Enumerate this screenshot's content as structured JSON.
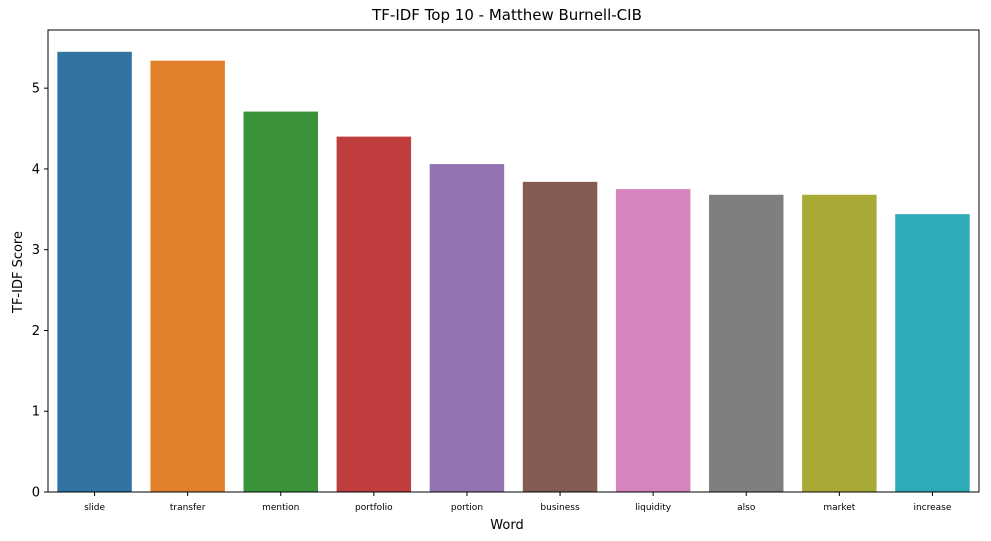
{
  "chart_data": {
    "type": "bar",
    "title": "TF-IDF Top 10 - Matthew Burnell-CIB",
    "xlabel": "Word",
    "ylabel": "TF-IDF Score",
    "categories": [
      "slide",
      "transfer",
      "mention",
      "portfolio",
      "portion",
      "business",
      "liquidity",
      "also",
      "market",
      "increase"
    ],
    "values": [
      5.45,
      5.34,
      4.71,
      4.4,
      4.06,
      3.84,
      3.75,
      3.68,
      3.68,
      3.44
    ],
    "colors": [
      "#3274a1",
      "#e1812c",
      "#3a923a",
      "#c03d3e",
      "#9372b2",
      "#845b53",
      "#d684bd",
      "#7f7f7f",
      "#a9aa35",
      "#2eabb8"
    ],
    "y_ticks": [
      0,
      1,
      2,
      3,
      4,
      5
    ],
    "ylim": [
      0,
      5.72
    ],
    "grid": false,
    "legend": "none"
  }
}
